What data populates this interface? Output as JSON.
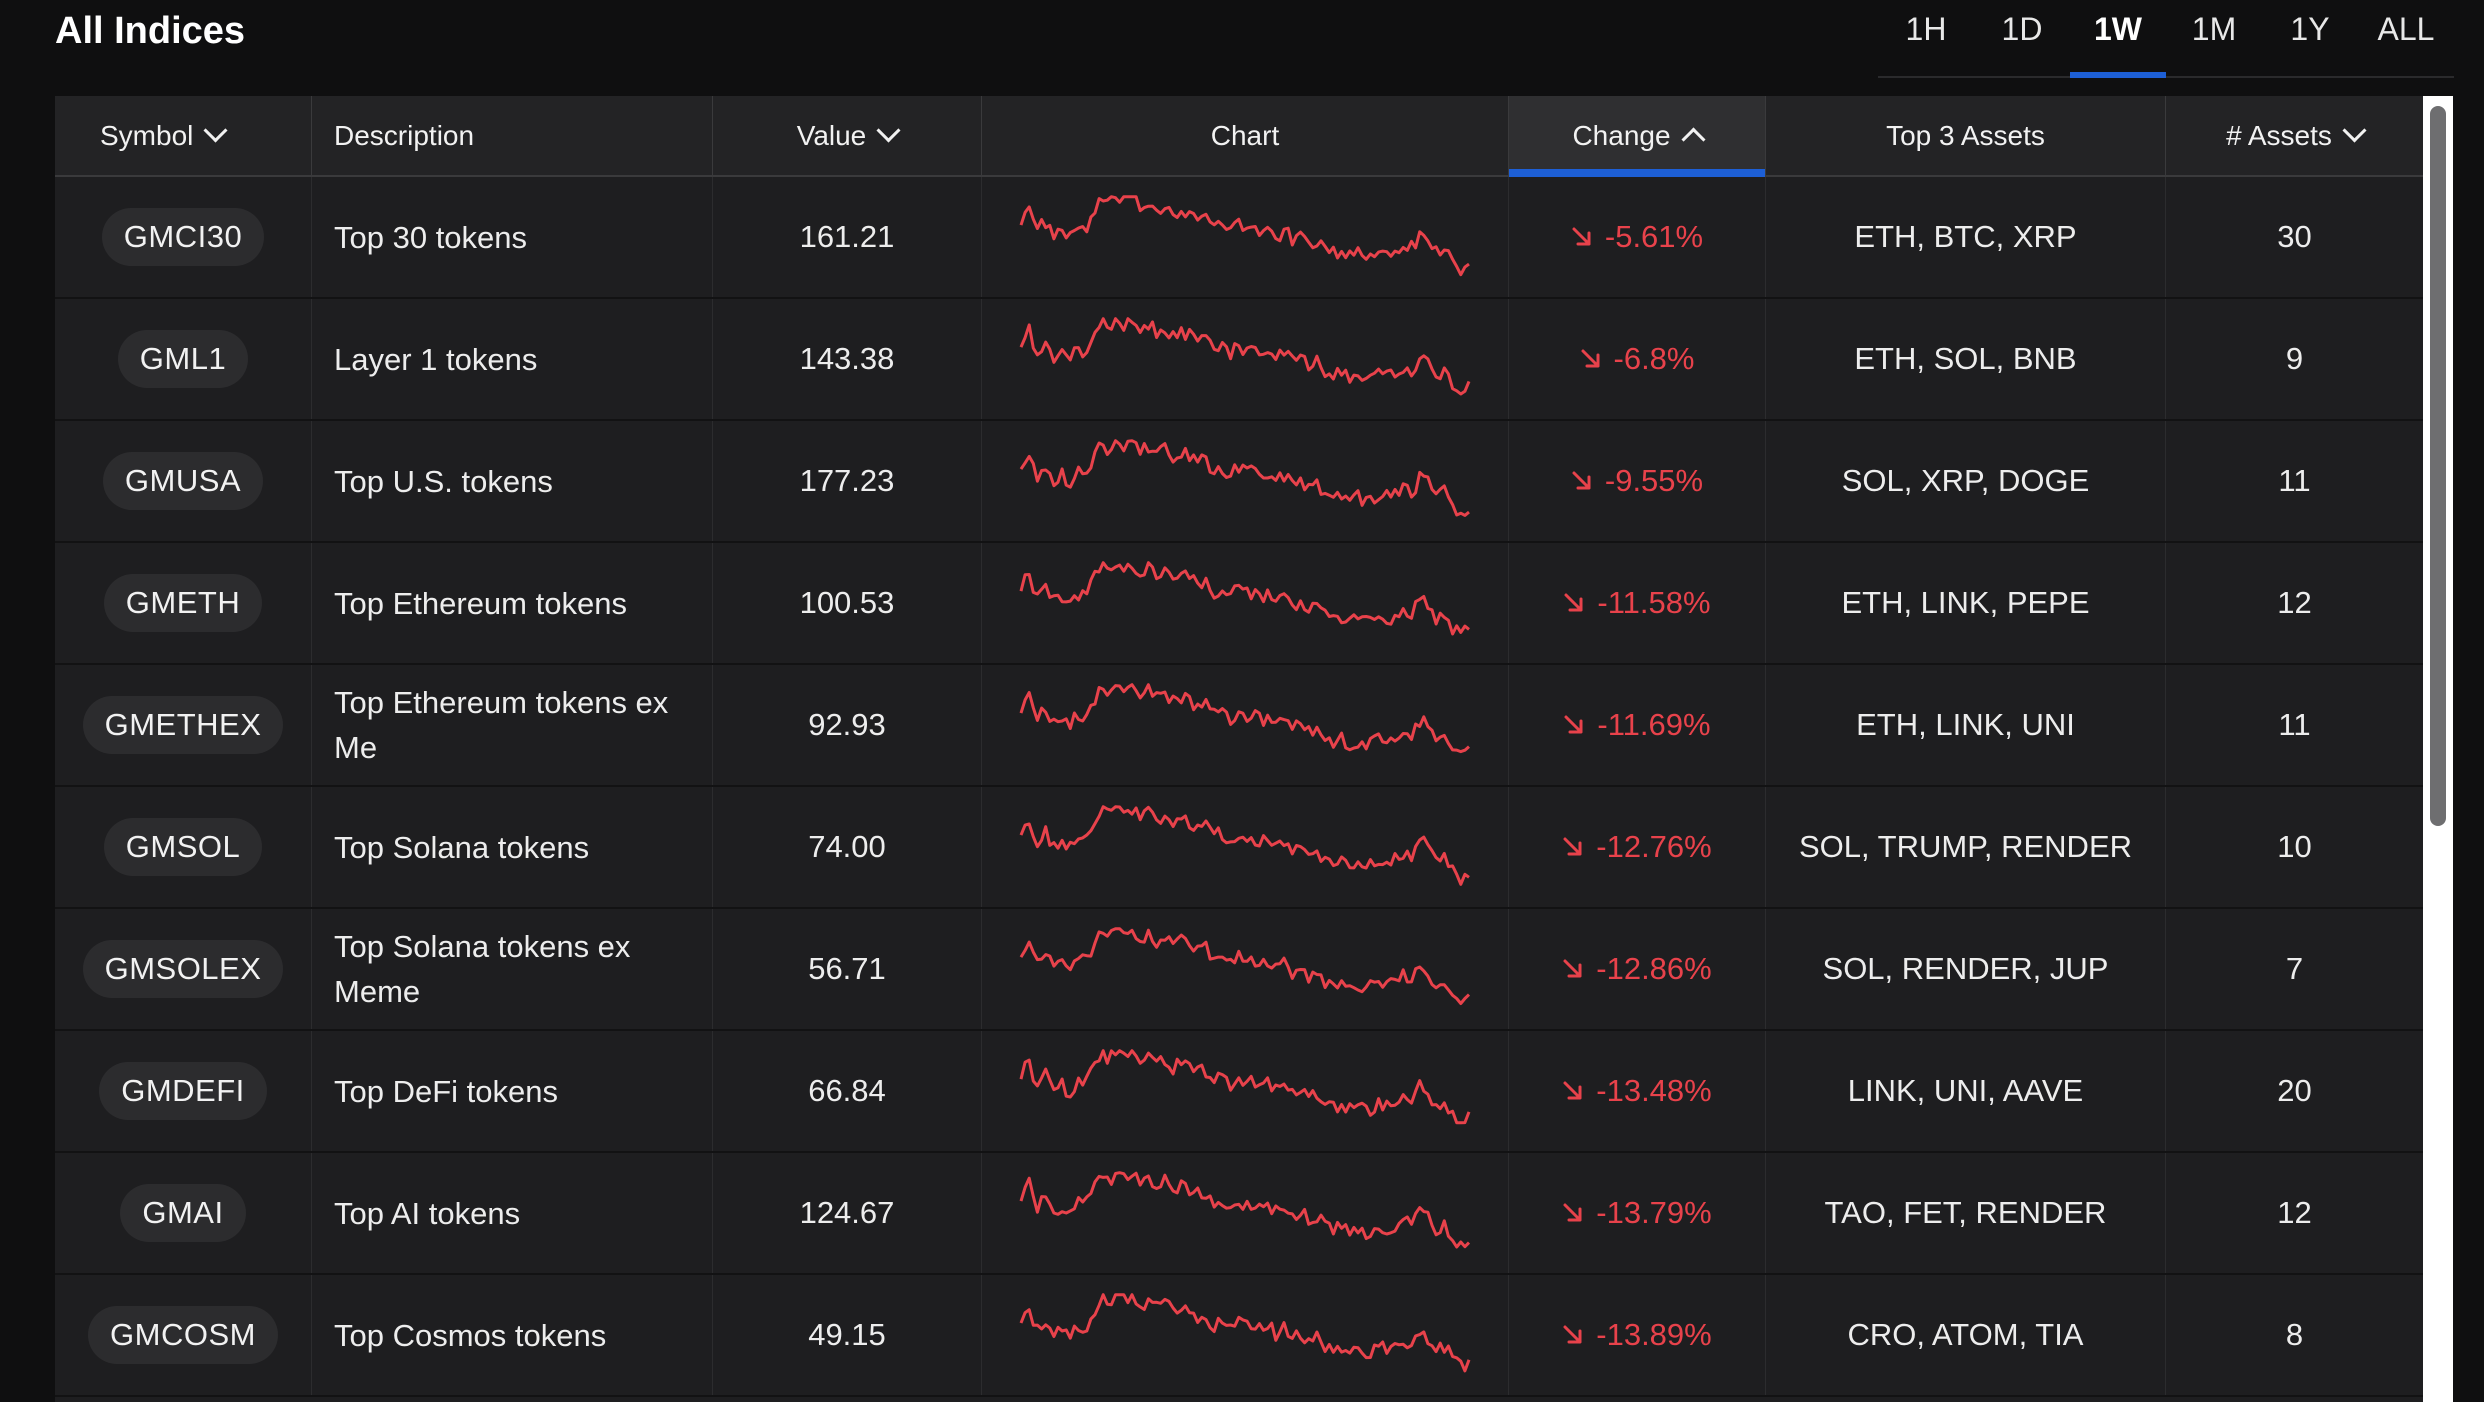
{
  "page_title": "All Indices",
  "time_ranges": [
    "1H",
    "1D",
    "1W",
    "1M",
    "1Y",
    "ALL"
  ],
  "active_range": "1W",
  "columns": {
    "symbol": "Symbol",
    "description": "Description",
    "value": "Value",
    "chart": "Chart",
    "change": "Change",
    "top_assets": "Top 3 Assets",
    "num_assets": "# Assets"
  },
  "sorted_column": "change",
  "sort_direction": "ascending",
  "change_color": "#e8424b",
  "accent_color": "#1d5fd6",
  "rows": [
    {
      "symbol": "GMCI30",
      "description": "Top 30 tokens",
      "value": "161.21",
      "change": "-5.61%",
      "top_assets": "ETH, BTC, XRP",
      "num_assets": "30"
    },
    {
      "symbol": "GML1",
      "description": "Layer 1 tokens",
      "value": "143.38",
      "change": "-6.8%",
      "top_assets": "ETH, SOL, BNB",
      "num_assets": "9"
    },
    {
      "symbol": "GMUSA",
      "description": "Top U.S. tokens",
      "value": "177.23",
      "change": "-9.55%",
      "top_assets": "SOL, XRP, DOGE",
      "num_assets": "11"
    },
    {
      "symbol": "GMETH",
      "description": "Top Ethereum tokens",
      "value": "100.53",
      "change": "-11.58%",
      "top_assets": "ETH, LINK, PEPE",
      "num_assets": "12"
    },
    {
      "symbol": "GMETHEX",
      "description": "Top Ethereum tokens ex Me",
      "value": "92.93",
      "change": "-11.69%",
      "top_assets": "ETH, LINK, UNI",
      "num_assets": "11"
    },
    {
      "symbol": "GMSOL",
      "description": "Top Solana tokens",
      "value": "74.00",
      "change": "-12.76%",
      "top_assets": "SOL, TRUMP, RENDER",
      "num_assets": "10"
    },
    {
      "symbol": "GMSOLEX",
      "description": "Top Solana tokens ex Meme",
      "value": "56.71",
      "change": "-12.86%",
      "top_assets": "SOL, RENDER, JUP",
      "num_assets": "7"
    },
    {
      "symbol": "GMDEFI",
      "description": "Top DeFi tokens",
      "value": "66.84",
      "change": "-13.48%",
      "top_assets": "LINK, UNI, AAVE",
      "num_assets": "20"
    },
    {
      "symbol": "GMAI",
      "description": "Top AI tokens",
      "value": "124.67",
      "change": "-13.79%",
      "top_assets": "TAO, FET, RENDER",
      "num_assets": "12"
    },
    {
      "symbol": "GMCOSM",
      "description": "Top Cosmos tokens",
      "value": "49.15",
      "change": "-13.89%",
      "top_assets": "CRO, ATOM, TIA",
      "num_assets": "8"
    }
  ]
}
